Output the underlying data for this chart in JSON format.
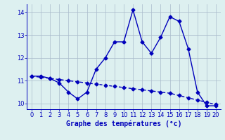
{
  "line1_x": [
    0,
    1,
    2,
    3,
    4,
    5,
    6,
    7,
    8,
    9,
    10,
    11,
    12,
    13,
    14,
    15,
    16,
    17,
    18,
    19,
    20
  ],
  "line1_y": [
    11.2,
    11.2,
    11.1,
    10.9,
    10.5,
    10.2,
    10.5,
    11.5,
    12.0,
    12.7,
    12.7,
    14.1,
    12.7,
    12.2,
    12.9,
    13.8,
    13.6,
    12.4,
    10.5,
    9.9,
    9.9
  ],
  "line2_x": [
    0,
    1,
    2,
    3,
    4,
    5,
    6,
    7,
    8,
    9,
    10,
    11,
    12,
    13,
    14,
    15,
    16,
    17,
    18,
    19,
    20
  ],
  "line2_y": [
    11.2,
    11.15,
    11.1,
    11.05,
    11.0,
    10.95,
    10.9,
    10.85,
    10.8,
    10.75,
    10.7,
    10.65,
    10.6,
    10.55,
    10.5,
    10.45,
    10.35,
    10.25,
    10.15,
    10.05,
    9.95
  ],
  "line_color": "#0000bb",
  "bg_color": "#ddf0f0",
  "grid_color": "#aabbcc",
  "xlabel": "Graphe des températures (°c)",
  "xlabel_fontsize": 7,
  "xlim": [
    -0.5,
    20.5
  ],
  "ylim": [
    9.75,
    14.35
  ],
  "yticks": [
    10,
    11,
    12,
    13,
    14
  ],
  "xticks": [
    0,
    1,
    2,
    3,
    4,
    5,
    6,
    7,
    8,
    9,
    10,
    11,
    12,
    13,
    14,
    15,
    16,
    17,
    18,
    19,
    20
  ],
  "tick_fontsize": 6,
  "marker": "D",
  "marker_size": 2.5
}
